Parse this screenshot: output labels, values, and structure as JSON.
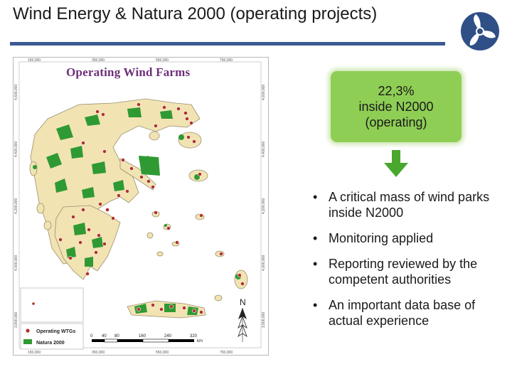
{
  "slide": {
    "title": "Wind Energy & Natura 2000 (operating projects)",
    "accent_color": "#3b5b92",
    "logo_icon": "triskelion-turbine-logo"
  },
  "map": {
    "title": "Operating Wind Farms",
    "top_coords": [
      "150,000",
      "350,000",
      "550,000",
      "750,000"
    ],
    "left_coords": [
      "4,600,000",
      "4,400,000",
      "4,200,000",
      "4,000,000",
      "3,800,000"
    ],
    "right_coords": [
      "4,600,000",
      "4,400,000",
      "4,200,000",
      "4,000,000",
      "3,800,000"
    ],
    "bottom_coords": [
      "150,000",
      "350,000",
      "550,000",
      "750,000"
    ],
    "legend": {
      "wtg_label": "Operating WTGs",
      "natura_label": "Natura 2000",
      "wtg_color": "#b0322a",
      "natura_color": "#2f9a33",
      "land_color": "#f2e3b3"
    },
    "scale": {
      "ticks": [
        "0",
        "40",
        "80",
        "160",
        "240",
        "320"
      ],
      "unit": "km"
    },
    "north_label": "N"
  },
  "stat": {
    "text": "22,3%\ninside N2000\n(operating)",
    "box_color": "#8fce55",
    "arrow_color": "#4aa72e"
  },
  "bullets": [
    "A critical mass of wind parks inside N2000",
    "Monitoring applied",
    "Reporting reviewed by the competent authorities",
    "An important data base of actual experience"
  ],
  "bullet_glyph": "•"
}
